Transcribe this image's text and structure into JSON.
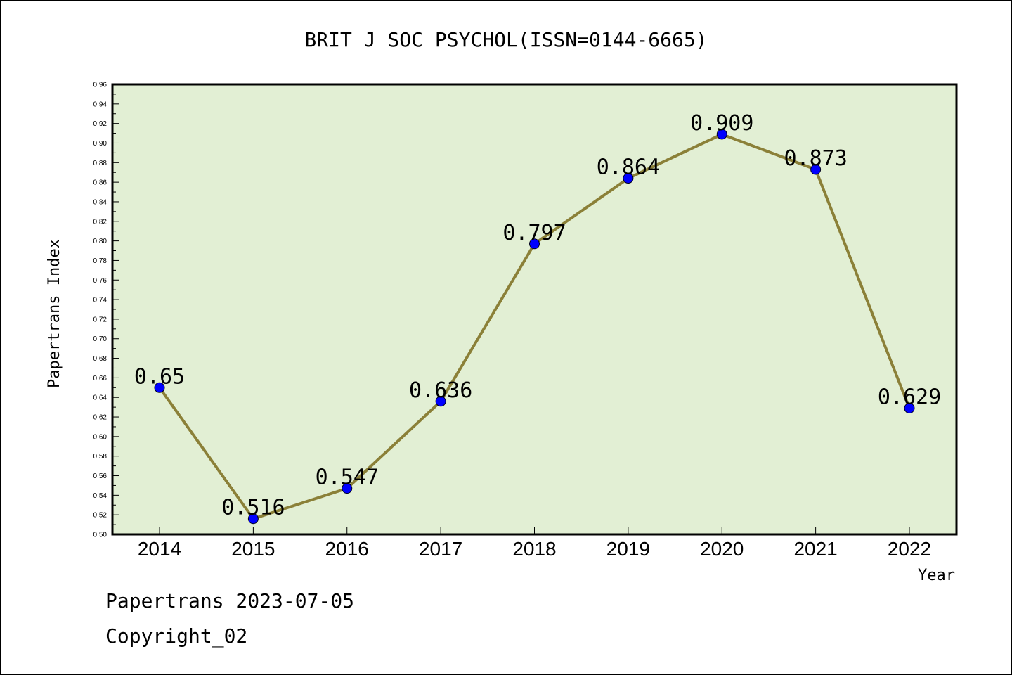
{
  "chart_data": {
    "type": "line",
    "title": "BRIT J SOC PSYCHOL(ISSN=0144-6665)",
    "xlabel": "Year",
    "ylabel": "Papertrans Index",
    "x": [
      "2014",
      "2015",
      "2016",
      "2017",
      "2018",
      "2019",
      "2020",
      "2021",
      "2022"
    ],
    "series": [
      {
        "values": [
          0.65,
          0.516,
          0.547,
          0.636,
          0.797,
          0.864,
          0.909,
          0.873,
          0.629
        ]
      }
    ],
    "data_labels": [
      "0.65",
      "0.516",
      "0.547",
      "0.636",
      "0.797",
      "0.864",
      "0.909",
      "0.873",
      "0.629"
    ],
    "ylim": [
      0.5,
      0.96
    ],
    "yticks": [
      "0.50",
      "0.52",
      "0.54",
      "0.56",
      "0.58",
      "0.60",
      "0.62",
      "0.64",
      "0.66",
      "0.68",
      "0.70",
      "0.72",
      "0.74",
      "0.76",
      "0.78",
      "0.80",
      "0.82",
      "0.84",
      "0.86",
      "0.88",
      "0.90",
      "0.92",
      "0.94",
      "0.96"
    ],
    "grid": false,
    "colors": {
      "plot_background": "#e2efd4",
      "line": "#8b8038",
      "marker": "#0000ff"
    }
  },
  "footer": {
    "date_line": "Papertrans 2023-07-05",
    "copyright": "Copyright_02"
  }
}
